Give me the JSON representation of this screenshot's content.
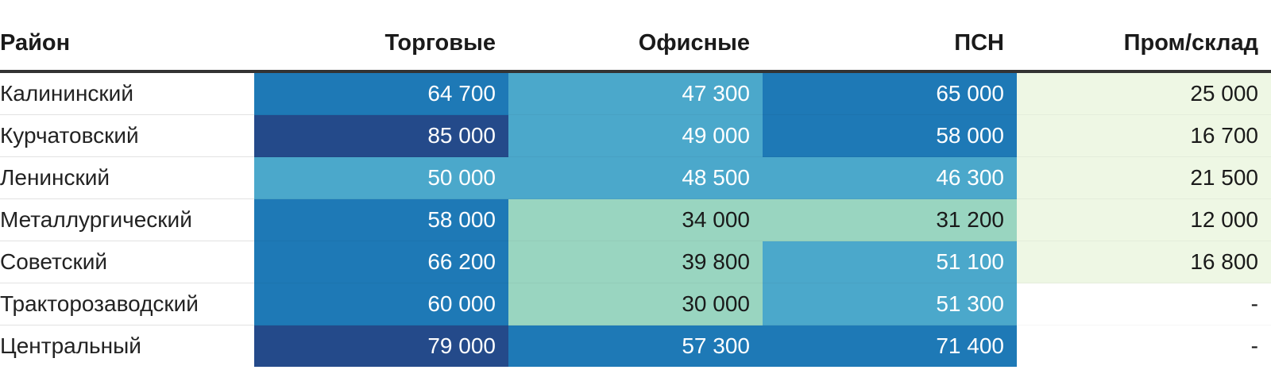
{
  "chart_data": {
    "type": "table",
    "headers": [
      "Район",
      "Торговые",
      "Офисные",
      "ПСН",
      "Пром/склад"
    ],
    "rows": [
      {
        "district": "Калининский",
        "values": [
          "64 700",
          "47 300",
          "65 000",
          "25 000"
        ],
        "numeric": [
          64700,
          47300,
          65000,
          25000
        ]
      },
      {
        "district": "Курчатовский",
        "values": [
          "85 000",
          "49 000",
          "58 000",
          "16 700"
        ],
        "numeric": [
          85000,
          49000,
          58000,
          16700
        ]
      },
      {
        "district": "Ленинский",
        "values": [
          "50 000",
          "48 500",
          "46 300",
          "21 500"
        ],
        "numeric": [
          50000,
          48500,
          46300,
          21500
        ]
      },
      {
        "district": "Металлургический",
        "values": [
          "58 000",
          "34 000",
          "31 200",
          "12 000"
        ],
        "numeric": [
          58000,
          34000,
          31200,
          12000
        ]
      },
      {
        "district": "Советский",
        "values": [
          "66 200",
          "39 800",
          "51 100",
          "16 800"
        ],
        "numeric": [
          66200,
          39800,
          51100,
          16800
        ]
      },
      {
        "district": "Тракторозаводский",
        "values": [
          "60 000",
          "30 000",
          "51 300",
          "-"
        ],
        "numeric": [
          60000,
          30000,
          51300,
          null
        ]
      },
      {
        "district": "Центральный",
        "values": [
          "79 000",
          "57 300",
          "71 400",
          "-"
        ],
        "numeric": [
          79000,
          57300,
          71400,
          null
        ]
      }
    ],
    "color_scale": {
      "colors": [
        "#eef7e4",
        "#99d5c0",
        "#4ba8cb",
        "#1e79b6",
        "#244a8a"
      ],
      "text_dark": "#1a1a1a",
      "text_light": "#ffffff",
      "missing_background": "#ffffff"
    }
  }
}
